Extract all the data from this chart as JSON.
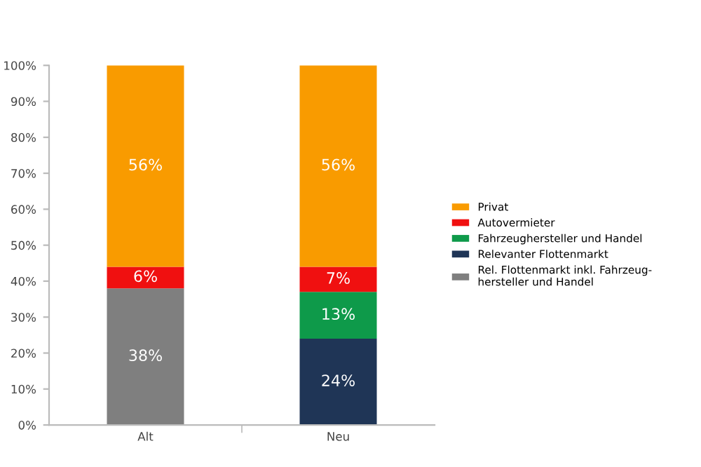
{
  "chart_data": {
    "type": "bar",
    "stacked": true,
    "categories": [
      "Alt",
      "Neu"
    ],
    "series": [
      {
        "name": "Rel. Flottenmarkt inkl. Fahrzeug-\nhersteller und Handel",
        "color": "#7f7f7f",
        "values": [
          38,
          null
        ],
        "value_labels": [
          "38%",
          null
        ]
      },
      {
        "name": "Relevanter Flottenmarkt",
        "color": "#1f3556",
        "values": [
          null,
          24
        ],
        "value_labels": [
          null,
          "24%"
        ]
      },
      {
        "name": "Fahrzeughersteller und Handel",
        "color": "#0e9a4a",
        "values": [
          null,
          13
        ],
        "value_labels": [
          null,
          "13%"
        ]
      },
      {
        "name": "Autovermieter",
        "color": "#f01010",
        "values": [
          6,
          7
        ],
        "value_labels": [
          "6%",
          "7%"
        ]
      },
      {
        "name": "Privat",
        "color": "#f99b00",
        "values": [
          56,
          56
        ],
        "value_labels": [
          "56%",
          "56%"
        ]
      }
    ],
    "ylim": [
      0,
      100
    ],
    "yticks": [
      {
        "value": 0,
        "label": "0%"
      },
      {
        "value": 10,
        "label": "10%"
      },
      {
        "value": 20,
        "label": "20%"
      },
      {
        "value": 30,
        "label": "30%"
      },
      {
        "value": 40,
        "label": "40%"
      },
      {
        "value": 50,
        "label": "50%"
      },
      {
        "value": 60,
        "label": "60%"
      },
      {
        "value": 70,
        "label": "70%"
      },
      {
        "value": 80,
        "label": "80%"
      },
      {
        "value": 90,
        "label": "90%"
      },
      {
        "value": 100,
        "label": "100%"
      }
    ],
    "grid": false,
    "legend": "right"
  }
}
